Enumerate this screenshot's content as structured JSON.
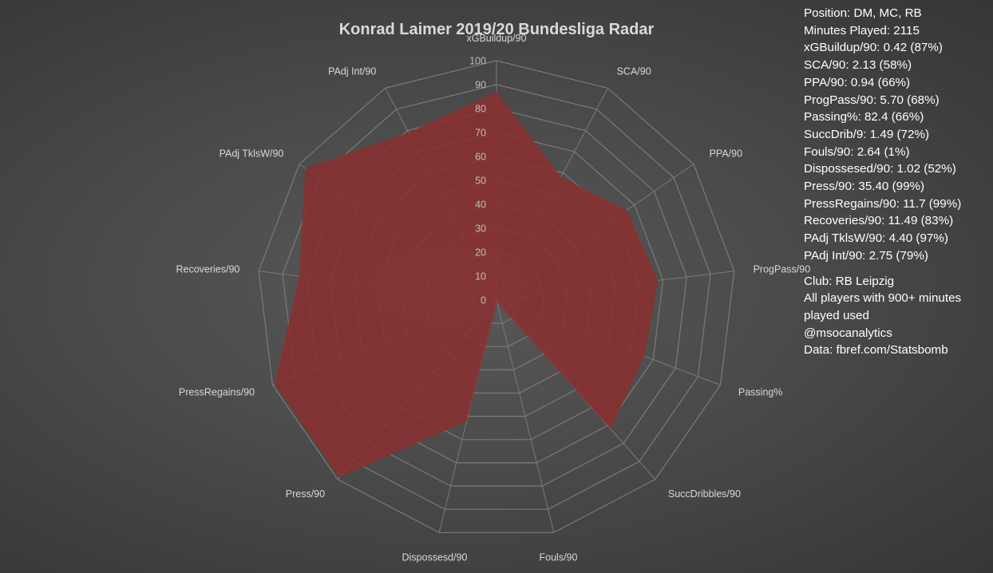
{
  "chart_data": {
    "type": "radar",
    "title": "Konrad Laimer 2019/20 Bundesliga Radar",
    "categories": [
      "xGBuildup/90",
      "SCA/90",
      "PPA/90",
      "ProgPass/90",
      "Passing%",
      "SuccDribbles/90",
      "Fouls/90",
      "Dispossesd/90",
      "Press/90",
      "PressRegains/90",
      "Recoveries/90",
      "PAdj TklsW/90",
      "PAdj Int/90"
    ],
    "series": [
      {
        "values": [
          87,
          58,
          66,
          68,
          66,
          72,
          1,
          52,
          99,
          99,
          83,
          97,
          79
        ]
      }
    ],
    "rlim": [
      0,
      100
    ],
    "ticks": [
      "0",
      "10",
      "20",
      "30",
      "40",
      "50",
      "60",
      "70",
      "80",
      "90",
      "100"
    ],
    "grid": true,
    "colors": {
      "fill": "#8b2f2f",
      "grid": "#7a7a7a",
      "background": "#4a4a4a"
    }
  },
  "info": {
    "lines": [
      "Position: DM, MC, RB",
      "Minutes Played: 2115",
      "xGBuildup/90: 0.42 (87%)",
      "SCA/90: 2.13 (58%)",
      "PPA/90: 0.94 (66%)",
      "ProgPass/90: 5.70 (68%)",
      "Passing%: 82.4 (66%)",
      "SuccDrib/9: 1.49 (72%)",
      "Fouls/90: 2.64 (1%)",
      "Dispossesed/90: 1.02 (52%)",
      "Press/90: 35.40 (99%)",
      "PressRegains/90: 11.7 (99%)",
      "Recoveries/90: 11.49 (83%)",
      "PAdj TklsW/90: 4.40 (97%)",
      "PAdj Int/90: 2.75 (79%)"
    ],
    "footer": [
      "Club: RB Leipzig",
      "All players with 900+ minutes",
      "played used",
      "@msocanalytics",
      "Data: fbref.com/Statsbomb"
    ]
  }
}
